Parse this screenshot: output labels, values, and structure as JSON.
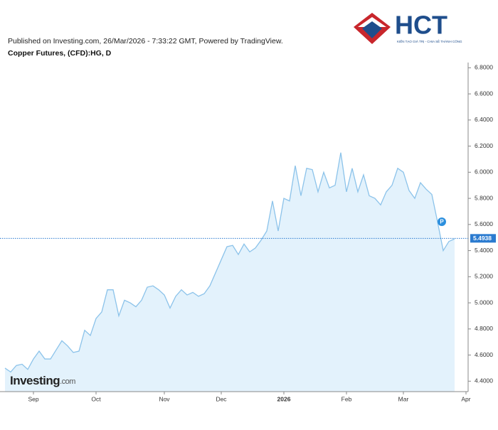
{
  "header": {
    "published": "Published on Investing.com, 26/Mar/2026 - 7:33:22 GMT, Powered by TradingView."
  },
  "logo": {
    "text": "HCT",
    "tagline": "KIẾN TẠO GIÁ TRỊ - CHIA SẺ THÀNH CÔNG"
  },
  "watermark": {
    "brand": "Investing",
    "suffix": ".com"
  },
  "chart_data": {
    "type": "area",
    "title": "Copper Futures, (CFD):HG, D",
    "categories": [
      null,
      null,
      null,
      null,
      null,
      "Sep",
      null,
      null,
      null,
      null,
      null,
      null,
      null,
      null,
      null,
      null,
      "Oct",
      null,
      null,
      null,
      null,
      null,
      null,
      null,
      null,
      null,
      null,
      null,
      "Nov",
      null,
      null,
      null,
      null,
      null,
      null,
      null,
      null,
      null,
      "Dec",
      null,
      null,
      null,
      null,
      null,
      null,
      null,
      null,
      null,
      null,
      "2026",
      null,
      null,
      null,
      null,
      null,
      null,
      null,
      null,
      null,
      null,
      "Feb",
      null,
      null,
      null,
      null,
      null,
      null,
      null,
      null,
      null,
      "Mar",
      null,
      null,
      null,
      null,
      null,
      null,
      null,
      null,
      null,
      null,
      "Apr"
    ],
    "values": [
      4.5,
      4.47,
      4.52,
      4.53,
      4.49,
      4.57,
      4.63,
      4.57,
      4.57,
      4.64,
      4.71,
      4.67,
      4.62,
      4.63,
      4.79,
      4.75,
      4.88,
      4.93,
      5.1,
      5.1,
      4.9,
      5.02,
      5.0,
      4.97,
      5.02,
      5.12,
      5.13,
      5.1,
      5.06,
      4.96,
      5.05,
      5.1,
      5.06,
      5.08,
      5.05,
      5.07,
      5.13,
      5.23,
      5.33,
      5.43,
      5.44,
      5.37,
      5.45,
      5.39,
      5.42,
      5.48,
      5.55,
      5.78,
      5.55,
      5.8,
      5.78,
      6.05,
      5.82,
      6.03,
      6.02,
      5.85,
      6.0,
      5.88,
      5.9,
      6.15,
      5.85,
      6.03,
      5.85,
      5.98,
      5.82,
      5.8,
      5.75,
      5.85,
      5.9,
      6.03,
      6.0,
      5.86,
      5.8,
      5.92,
      5.87,
      5.83,
      5.62,
      5.4,
      5.47,
      5.49,
      null,
      null
    ],
    "color": "#8cc3ea",
    "fill": "#e3f2fc",
    "last_value": 5.4938,
    "marker_label": "P",
    "bold_category": "2026",
    "ylim": [
      4.32,
      6.84
    ],
    "yticks": [
      {
        "value": 4.4,
        "label": "4.4000"
      },
      {
        "value": 4.6,
        "label": "4.6000"
      },
      {
        "value": 4.8,
        "label": "4.8000"
      },
      {
        "value": 5.0,
        "label": "5.0000"
      },
      {
        "value": 5.2,
        "label": "5.2000"
      },
      {
        "value": 5.4,
        "label": "5.4000"
      },
      {
        "value": 5.6,
        "label": "5.6000"
      },
      {
        "value": 5.8,
        "label": "5.8000"
      },
      {
        "value": 6.0,
        "label": "6.0000"
      },
      {
        "value": 6.2,
        "label": "6.2000"
      },
      {
        "value": 6.4,
        "label": "6.4000"
      },
      {
        "value": 6.6,
        "label": "6.6000"
      },
      {
        "value": 6.8,
        "label": "6.8000"
      }
    ],
    "grid": false
  }
}
